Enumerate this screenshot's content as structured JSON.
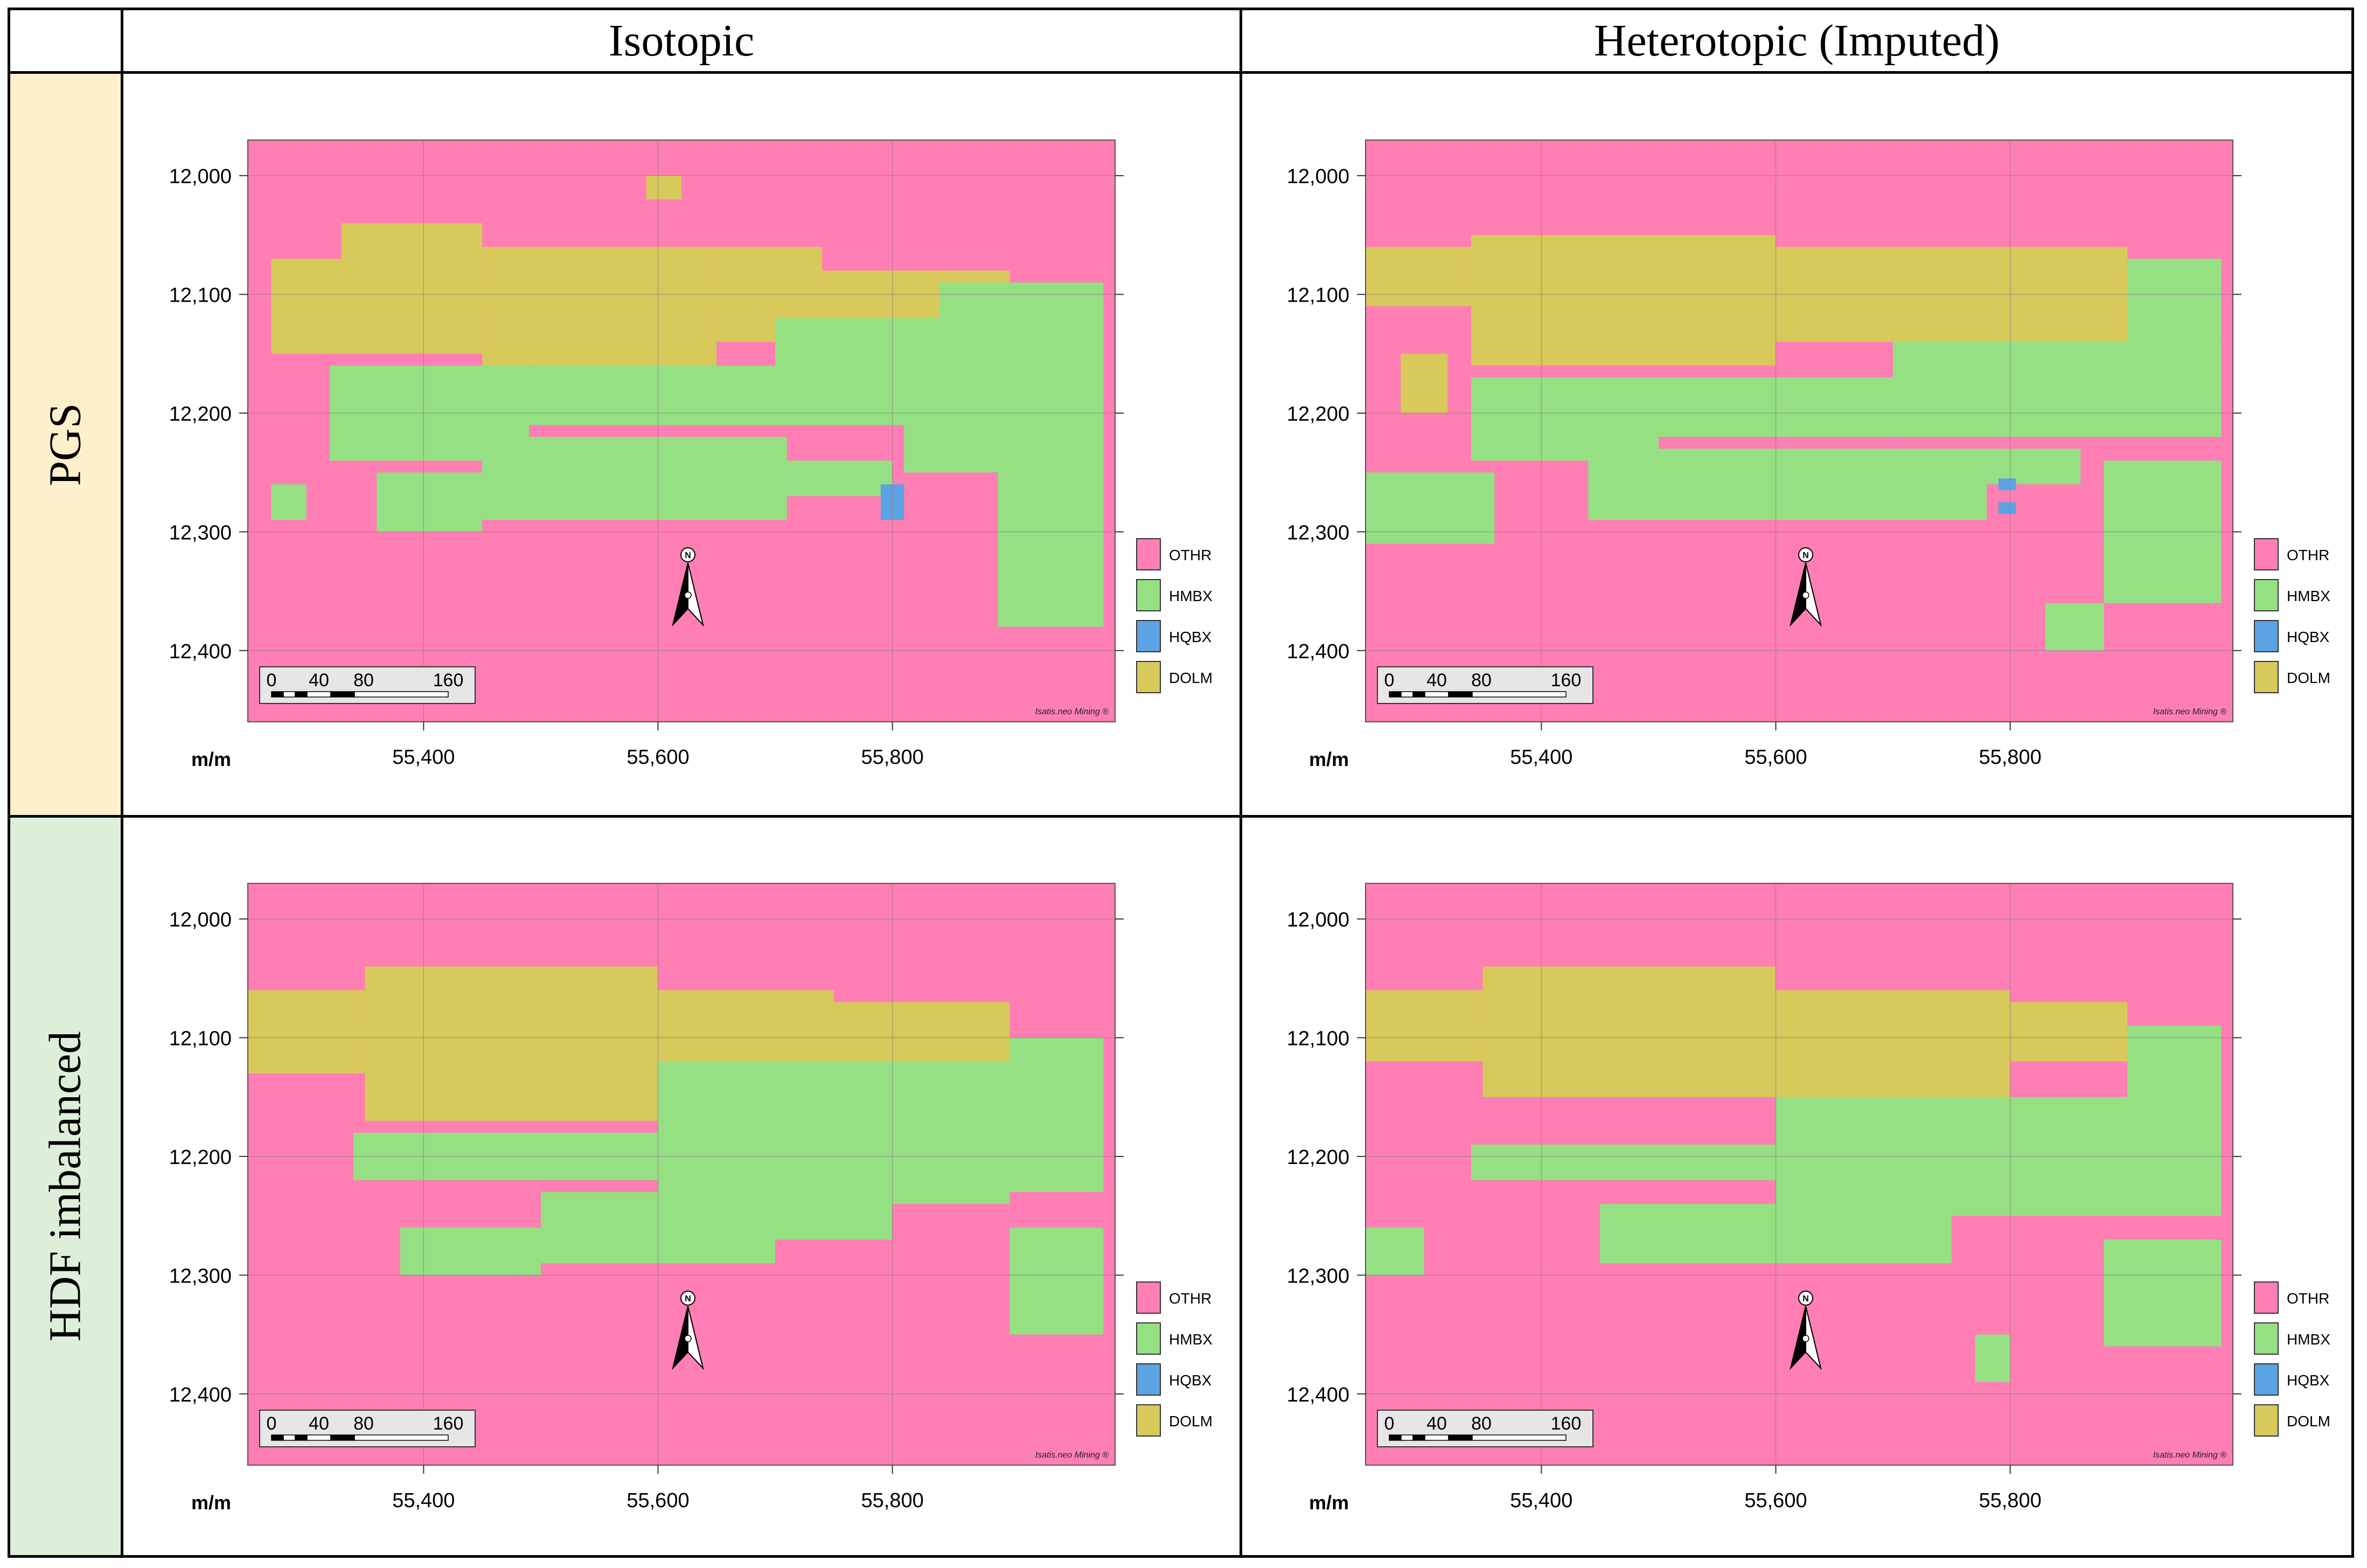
{
  "figure": {
    "columns": [
      "Isotopic",
      "Heterotopic (Imputed)"
    ],
    "rows": [
      "PGS",
      "HDF imbalanced"
    ],
    "colors": {
      "row_header_pgs": "#fff0cc",
      "row_header_hdf": "#ddefd9",
      "grid": "#000000"
    }
  },
  "map_common": {
    "unit_label": "m/m",
    "x_ticks": [
      "55,400",
      "55,600",
      "55,800"
    ],
    "y_ticks": [
      "12,400",
      "12,300",
      "12,200",
      "12,100",
      "12,000"
    ],
    "scale_bar_labels": [
      "0",
      "40",
      "80",
      "160"
    ],
    "north_label": "N",
    "watermark": "Isatis.neo Mining ®",
    "legend": [
      {
        "code": "OTHR",
        "color": "#ff7eb4"
      },
      {
        "code": "HMBX",
        "color": "#96e084"
      },
      {
        "code": "HQBX",
        "color": "#5ca3e3"
      },
      {
        "code": "DOLM",
        "color": "#d8c95b"
      }
    ]
  },
  "chart_data": [
    {
      "type": "heatmap",
      "panel": "PGS / Isotopic",
      "x_range": [
        55250,
        55990
      ],
      "y_range": [
        11940,
        12430
      ],
      "x_ticks": [
        55400,
        55600,
        55800
      ],
      "y_ticks": [
        12000,
        12100,
        12200,
        12300,
        12400
      ],
      "cell_size": 10,
      "background_class": "OTHR",
      "zones": [
        {
          "class": "DOLM",
          "x": [
            55270,
            55330
          ],
          "y": [
            12250,
            12330
          ]
        },
        {
          "class": "DOLM",
          "x": [
            55330,
            55450
          ],
          "y": [
            12250,
            12360
          ]
        },
        {
          "class": "DOLM",
          "x": [
            55450,
            55650
          ],
          "y": [
            12240,
            12340
          ]
        },
        {
          "class": "DOLM",
          "x": [
            55650,
            55740
          ],
          "y": [
            12260,
            12340
          ]
        },
        {
          "class": "DOLM",
          "x": [
            55740,
            55900
          ],
          "y": [
            12260,
            12320
          ]
        },
        {
          "class": "DOLM",
          "x": [
            55590,
            55620
          ],
          "y": [
            12380,
            12400
          ]
        },
        {
          "class": "HMBX",
          "x": [
            55320,
            55490
          ],
          "y": [
            12160,
            12240
          ]
        },
        {
          "class": "HMBX",
          "x": [
            55490,
            55700
          ],
          "y": [
            12190,
            12240
          ]
        },
        {
          "class": "HMBX",
          "x": [
            55700,
            55980
          ],
          "y": [
            12190,
            12280
          ]
        },
        {
          "class": "HMBX",
          "x": [
            55840,
            55980
          ],
          "y": [
            12280,
            12310
          ]
        },
        {
          "class": "HMBX",
          "x": [
            55450,
            55710
          ],
          "y": [
            12110,
            12180
          ]
        },
        {
          "class": "HMBX",
          "x": [
            55360,
            55450
          ],
          "y": [
            12100,
            12150
          ]
        },
        {
          "class": "HMBX",
          "x": [
            55710,
            55800
          ],
          "y": [
            12130,
            12160
          ]
        },
        {
          "class": "HMBX",
          "x": [
            55810,
            55980
          ],
          "y": [
            12150,
            12200
          ]
        },
        {
          "class": "HMBX",
          "x": [
            55890,
            55980
          ],
          "y": [
            12020,
            12150
          ]
        },
        {
          "class": "HMBX",
          "x": [
            55270,
            55300
          ],
          "y": [
            12110,
            12140
          ]
        },
        {
          "class": "HQBX",
          "x": [
            55790,
            55810
          ],
          "y": [
            12110,
            12140
          ]
        }
      ]
    },
    {
      "type": "heatmap",
      "panel": "PGS / Heterotopic (Imputed)",
      "x_range": [
        55250,
        55990
      ],
      "y_range": [
        11940,
        12430
      ],
      "x_ticks": [
        55400,
        55600,
        55800
      ],
      "y_ticks": [
        12000,
        12100,
        12200,
        12300,
        12400
      ],
      "cell_size": 10,
      "background_class": "OTHR",
      "zones": [
        {
          "class": "DOLM",
          "x": [
            55250,
            55340
          ],
          "y": [
            12290,
            12340
          ]
        },
        {
          "class": "DOLM",
          "x": [
            55340,
            55600
          ],
          "y": [
            12240,
            12350
          ]
        },
        {
          "class": "DOLM",
          "x": [
            55600,
            55900
          ],
          "y": [
            12260,
            12340
          ]
        },
        {
          "class": "DOLM",
          "x": [
            55280,
            55320
          ],
          "y": [
            12200,
            12250
          ]
        },
        {
          "class": "HMBX",
          "x": [
            55340,
            55500
          ],
          "y": [
            12160,
            12230
          ]
        },
        {
          "class": "HMBX",
          "x": [
            55500,
            55700
          ],
          "y": [
            12180,
            12230
          ]
        },
        {
          "class": "HMBX",
          "x": [
            55700,
            55980
          ],
          "y": [
            12180,
            12260
          ]
        },
        {
          "class": "HMBX",
          "x": [
            55900,
            55980
          ],
          "y": [
            12260,
            12330
          ]
        },
        {
          "class": "HMBX",
          "x": [
            55250,
            55360
          ],
          "y": [
            12090,
            12150
          ]
        },
        {
          "class": "HMBX",
          "x": [
            55440,
            55780
          ],
          "y": [
            12110,
            12170
          ]
        },
        {
          "class": "HMBX",
          "x": [
            55780,
            55860
          ],
          "y": [
            12140,
            12170
          ]
        },
        {
          "class": "HMBX",
          "x": [
            55880,
            55980
          ],
          "y": [
            12040,
            12160
          ]
        },
        {
          "class": "HMBX",
          "x": [
            55830,
            55880
          ],
          "y": [
            12000,
            12040
          ]
        },
        {
          "class": "HQBX",
          "x": [
            55790,
            55805
          ],
          "y": [
            12135,
            12145
          ]
        },
        {
          "class": "HQBX",
          "x": [
            55790,
            55805
          ],
          "y": [
            12115,
            12125
          ]
        }
      ]
    },
    {
      "type": "heatmap",
      "panel": "HDF imbalanced / Isotopic",
      "x_range": [
        55250,
        55990
      ],
      "y_range": [
        11940,
        12430
      ],
      "x_ticks": [
        55400,
        55600,
        55800
      ],
      "y_ticks": [
        12000,
        12100,
        12200,
        12300,
        12400
      ],
      "cell_size": 10,
      "background_class": "OTHR",
      "zones": [
        {
          "class": "DOLM",
          "x": [
            55250,
            55350
          ],
          "y": [
            12270,
            12340
          ]
        },
        {
          "class": "DOLM",
          "x": [
            55350,
            55600
          ],
          "y": [
            12230,
            12360
          ]
        },
        {
          "class": "DOLM",
          "x": [
            55600,
            55750
          ],
          "y": [
            12270,
            12340
          ]
        },
        {
          "class": "DOLM",
          "x": [
            55750,
            55900
          ],
          "y": [
            12280,
            12330
          ]
        },
        {
          "class": "HMBX",
          "x": [
            55340,
            55600
          ],
          "y": [
            12180,
            12220
          ]
        },
        {
          "class": "HMBX",
          "x": [
            55600,
            55900
          ],
          "y": [
            12160,
            12280
          ]
        },
        {
          "class": "HMBX",
          "x": [
            55900,
            55980
          ],
          "y": [
            12170,
            12300
          ]
        },
        {
          "class": "HMBX",
          "x": [
            55500,
            55700
          ],
          "y": [
            12110,
            12170
          ]
        },
        {
          "class": "HMBX",
          "x": [
            55380,
            55500
          ],
          "y": [
            12100,
            12140
          ]
        },
        {
          "class": "HMBX",
          "x": [
            55700,
            55800
          ],
          "y": [
            12130,
            12160
          ]
        },
        {
          "class": "HMBX",
          "x": [
            55900,
            55980
          ],
          "y": [
            12050,
            12140
          ]
        }
      ]
    },
    {
      "type": "heatmap",
      "panel": "HDF imbalanced / Heterotopic (Imputed)",
      "x_range": [
        55250,
        55990
      ],
      "y_range": [
        11940,
        12430
      ],
      "x_ticks": [
        55400,
        55600,
        55800
      ],
      "y_ticks": [
        12000,
        12100,
        12200,
        12300,
        12400
      ],
      "cell_size": 10,
      "background_class": "OTHR",
      "zones": [
        {
          "class": "DOLM",
          "x": [
            55250,
            55350
          ],
          "y": [
            12280,
            12340
          ]
        },
        {
          "class": "DOLM",
          "x": [
            55350,
            55600
          ],
          "y": [
            12250,
            12360
          ]
        },
        {
          "class": "DOLM",
          "x": [
            55600,
            55800
          ],
          "y": [
            12240,
            12340
          ]
        },
        {
          "class": "DOLM",
          "x": [
            55800,
            55900
          ],
          "y": [
            12280,
            12330
          ]
        },
        {
          "class": "HMBX",
          "x": [
            55340,
            55600
          ],
          "y": [
            12180,
            12210
          ]
        },
        {
          "class": "HMBX",
          "x": [
            55600,
            55900
          ],
          "y": [
            12150,
            12250
          ]
        },
        {
          "class": "HMBX",
          "x": [
            55900,
            55980
          ],
          "y": [
            12150,
            12310
          ]
        },
        {
          "class": "HMBX",
          "x": [
            55450,
            55750
          ],
          "y": [
            12110,
            12160
          ]
        },
        {
          "class": "HMBX",
          "x": [
            55250,
            55300
          ],
          "y": [
            12100,
            12140
          ]
        },
        {
          "class": "HMBX",
          "x": [
            55880,
            55980
          ],
          "y": [
            12040,
            12130
          ]
        },
        {
          "class": "HMBX",
          "x": [
            55770,
            55800
          ],
          "y": [
            12010,
            12050
          ]
        }
      ]
    }
  ]
}
